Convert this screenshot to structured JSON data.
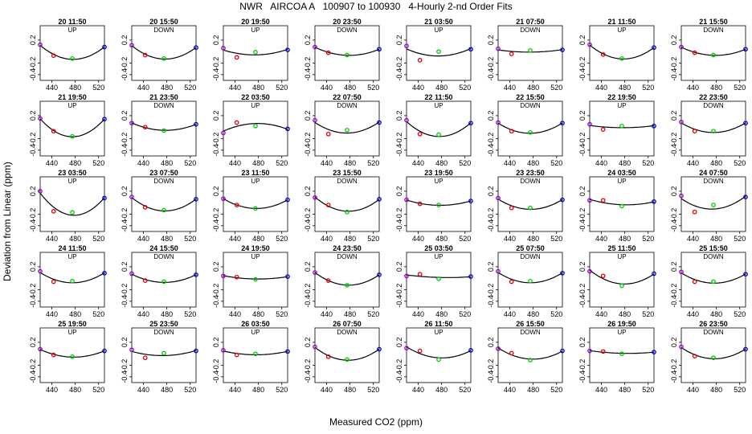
{
  "chart_data": {
    "type": "scatter",
    "title": "NWR   AIRCOA A   100907 to 100930   4-Hourly 2-nd Order Fits",
    "xlabel": "Measured CO2 (ppm)",
    "ylabel": "Deviation from Linear (ppm)",
    "xlim": [
      420,
      530
    ],
    "ylim": [
      -0.5,
      0.45
    ],
    "xticks": [
      "440",
      "480",
      "520"
    ],
    "yticks": [
      "-0.4",
      "-0.2",
      "0.2"
    ],
    "x_positions": [
      420,
      443,
      475,
      530
    ],
    "point_colors": [
      "#9900cc",
      "#e00000",
      "#00cc00",
      "#0000cc"
    ],
    "fit_color": "#000000",
    "panels": [
      {
        "title": "20 11:50",
        "dir": "UP",
        "y": [
          0.12,
          -0.07,
          -0.12,
          0.08
        ]
      },
      {
        "title": "20 15:50",
        "dir": "DOWN",
        "y": [
          0.11,
          -0.06,
          -0.12,
          0.07
        ]
      },
      {
        "title": "20 19:50",
        "dir": "UP",
        "y": [
          0.06,
          -0.1,
          -0.01,
          0.03
        ]
      },
      {
        "title": "20 23:50",
        "dir": "DOWN",
        "y": [
          0.08,
          -0.02,
          -0.06,
          0.04
        ]
      },
      {
        "title": "21 03:50",
        "dir": "UP",
        "y": [
          0.1,
          -0.15,
          0.0,
          0.04
        ]
      },
      {
        "title": "21 07:50",
        "dir": "DOWN",
        "y": [
          0.05,
          -0.04,
          0.02,
          0.03
        ]
      },
      {
        "title": "21 11:50",
        "dir": "UP",
        "y": [
          0.12,
          -0.05,
          -0.12,
          0.07
        ]
      },
      {
        "title": "21 15:50",
        "dir": "DOWN",
        "y": [
          0.08,
          -0.02,
          -0.06,
          0.04
        ]
      },
      {
        "title": "21 19:50",
        "dir": "UP",
        "y": [
          0.15,
          -0.07,
          -0.16,
          0.14
        ]
      },
      {
        "title": "21 23:50",
        "dir": "DOWN",
        "y": [
          0.07,
          0.0,
          -0.06,
          0.05
        ]
      },
      {
        "title": "22 03:50",
        "dir": "UP",
        "y": [
          -0.1,
          0.08,
          0.02,
          -0.03
        ]
      },
      {
        "title": "22 07:50",
        "dir": "DOWN",
        "y": [
          0.12,
          -0.12,
          -0.05,
          0.08
        ]
      },
      {
        "title": "22 11:50",
        "dir": "UP",
        "y": [
          0.12,
          -0.12,
          -0.13,
          0.07
        ]
      },
      {
        "title": "22 15:50",
        "dir": "DOWN",
        "y": [
          0.08,
          -0.07,
          -0.09,
          0.07
        ]
      },
      {
        "title": "22 19:50",
        "dir": "UP",
        "y": [
          0.05,
          -0.04,
          0.02,
          0.02
        ]
      },
      {
        "title": "22 23:50",
        "dir": "DOWN",
        "y": [
          0.09,
          -0.07,
          -0.07,
          0.07
        ]
      },
      {
        "title": "23 03:50",
        "dir": "UP",
        "y": [
          0.2,
          -0.15,
          -0.17,
          0.08
        ]
      },
      {
        "title": "23 07:50",
        "dir": "DOWN",
        "y": [
          0.1,
          -0.08,
          -0.13,
          0.06
        ]
      },
      {
        "title": "23 11:50",
        "dir": "UP",
        "y": [
          0.07,
          -0.04,
          -0.1,
          0.05
        ]
      },
      {
        "title": "23 15:50",
        "dir": "DOWN",
        "y": [
          0.09,
          -0.04,
          -0.16,
          0.06
        ]
      },
      {
        "title": "23 19:50",
        "dir": "UP",
        "y": [
          0.05,
          -0.02,
          -0.04,
          0.03
        ]
      },
      {
        "title": "23 23:50",
        "dir": "DOWN",
        "y": [
          0.08,
          -0.09,
          -0.09,
          0.05
        ]
      },
      {
        "title": "24 03:50",
        "dir": "UP",
        "y": [
          0.04,
          0.04,
          -0.06,
          0.02
        ]
      },
      {
        "title": "24 07:50",
        "dir": "DOWN",
        "y": [
          0.12,
          -0.16,
          -0.04,
          0.1
        ]
      },
      {
        "title": "24 11:50",
        "dir": "UP",
        "y": [
          0.12,
          -0.06,
          -0.05,
          0.09
        ]
      },
      {
        "title": "24 15:50",
        "dir": "DOWN",
        "y": [
          0.08,
          -0.04,
          -0.06,
          0.06
        ]
      },
      {
        "title": "24 19:50",
        "dir": "UP",
        "y": [
          0.04,
          0.02,
          -0.02,
          0.03
        ]
      },
      {
        "title": "24 23:50",
        "dir": "DOWN",
        "y": [
          0.1,
          -0.04,
          -0.12,
          0.06
        ]
      },
      {
        "title": "25 03:50",
        "dir": "UP",
        "y": [
          0.04,
          0.07,
          -0.01,
          0.03
        ]
      },
      {
        "title": "25 07:50",
        "dir": "DOWN",
        "y": [
          0.12,
          -0.06,
          -0.05,
          0.09
        ]
      },
      {
        "title": "25 11:50",
        "dir": "UP",
        "y": [
          0.12,
          0.04,
          -0.13,
          0.08
        ]
      },
      {
        "title": "25 15:50",
        "dir": "DOWN",
        "y": [
          0.11,
          -0.06,
          -0.06,
          0.07
        ]
      },
      {
        "title": "25 19:50",
        "dir": "UP",
        "y": [
          0.08,
          -0.02,
          -0.05,
          0.05
        ]
      },
      {
        "title": "25 23:50",
        "dir": "DOWN",
        "y": [
          0.07,
          -0.07,
          0.01,
          0.05
        ]
      },
      {
        "title": "26 03:50",
        "dir": "UP",
        "y": [
          0.06,
          -0.02,
          0.0,
          0.04
        ]
      },
      {
        "title": "26 07:50",
        "dir": "DOWN",
        "y": [
          0.12,
          -0.05,
          -0.1,
          0.08
        ]
      },
      {
        "title": "26 11:50",
        "dir": "UP",
        "y": [
          0.1,
          0.05,
          -0.1,
          0.06
        ]
      },
      {
        "title": "26 15:50",
        "dir": "DOWN",
        "y": [
          0.09,
          0.01,
          -0.11,
          0.05
        ]
      },
      {
        "title": "26 19:50",
        "dir": "UP",
        "y": [
          0.05,
          0.04,
          0.0,
          0.03
        ]
      },
      {
        "title": "26 23:50",
        "dir": "DOWN",
        "y": [
          0.12,
          -0.04,
          -0.07,
          0.08
        ]
      }
    ]
  }
}
